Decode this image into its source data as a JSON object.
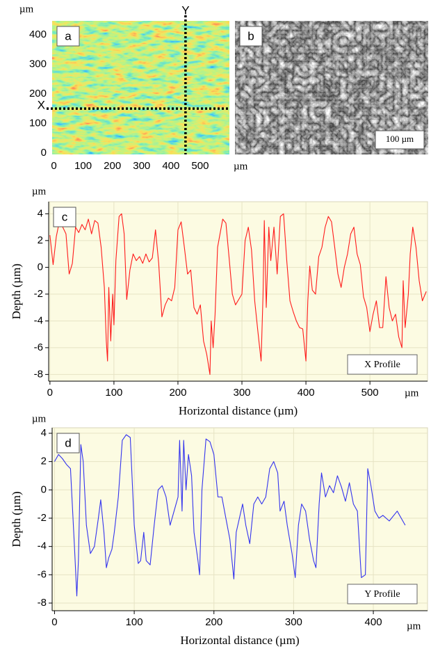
{
  "chart_data": [
    {
      "type": "height_map",
      "label": "a",
      "x_unit": "µm",
      "y_unit": "µm",
      "xlim": [
        -6,
        600
      ],
      "ylim": [
        -5,
        447
      ],
      "xticks": [
        0,
        100,
        200,
        300,
        400,
        500
      ],
      "yticks": [
        0,
        100,
        200,
        300,
        400
      ],
      "markers": [
        {
          "axis": "x",
          "value": 450,
          "label": "Y"
        },
        {
          "axis": "y",
          "value": 150,
          "label": "X"
        }
      ]
    },
    {
      "type": "image",
      "label": "b",
      "scale_bar": "100 µm"
    },
    {
      "type": "line",
      "label": "c",
      "x_unit": "µm",
      "y_unit": "µm",
      "x_label": "Horizontal distance (µm)",
      "y_label": "Depth (µm)",
      "xlim": [
        -2,
        590
      ],
      "ylim": [
        -8.5,
        4.9
      ],
      "xticks": [
        0,
        100,
        200,
        300,
        400,
        500
      ],
      "yticks": [
        -8,
        -6,
        -4,
        -2,
        0,
        2,
        4
      ],
      "grid": true,
      "x": [
        0,
        5,
        10,
        15,
        20,
        25,
        30,
        35,
        40,
        45,
        50,
        55,
        60,
        65,
        70,
        75,
        80,
        85,
        88,
        90,
        92,
        95,
        98,
        100,
        103,
        108,
        112,
        116,
        120,
        125,
        130,
        135,
        140,
        145,
        150,
        155,
        160,
        165,
        170,
        175,
        180,
        185,
        190,
        195,
        200,
        205,
        210,
        215,
        220,
        225,
        230,
        235,
        240,
        245,
        250,
        252,
        255,
        258,
        262,
        270,
        275,
        280,
        285,
        290,
        300,
        305,
        310,
        315,
        320,
        325,
        330,
        333,
        335,
        338,
        342,
        345,
        350,
        355,
        360,
        365,
        370,
        375,
        380,
        385,
        390,
        395,
        400,
        403,
        406,
        410,
        415,
        420,
        425,
        430,
        435,
        440,
        445,
        450,
        455,
        460,
        465,
        470,
        475,
        480,
        485,
        490,
        495,
        500,
        505,
        510,
        515,
        520,
        525,
        530,
        535,
        540,
        545,
        550,
        552,
        555,
        560,
        563,
        567,
        572,
        577,
        582,
        588
      ],
      "series": [
        {
          "name": "X Profile",
          "color": "#ff1a1a",
          "values": [
            2.4,
            0.2,
            2.3,
            3.5,
            3.0,
            2.5,
            -0.5,
            0.3,
            3.0,
            2.6,
            3.2,
            2.8,
            3.6,
            2.5,
            3.5,
            3.3,
            1.5,
            -1.5,
            -5.5,
            -7.0,
            -1.5,
            -5.5,
            -2,
            -4.3,
            0.5,
            3.8,
            4.0,
            2.5,
            -2.4,
            -0.2,
            1,
            0.5,
            0.8,
            0.3,
            1.0,
            0.4,
            0.7,
            2.8,
            0.3,
            -3.7,
            -2.8,
            -2.3,
            -2.5,
            -1.5,
            2.8,
            3.4,
            1.5,
            -0.5,
            -0.2,
            -3,
            -3.5,
            -2.8,
            -5.5,
            -6.5,
            -8,
            -4,
            -6,
            -3.5,
            1.5,
            3.6,
            3.3,
            0.7,
            -2.0,
            -2.8,
            -2.0,
            2.0,
            3.0,
            1.3,
            -2.5,
            -4.8,
            -7.0,
            -2,
            3.5,
            -3,
            3.0,
            0.5,
            3.0,
            -0.5,
            3.8,
            4.0,
            0.5,
            -2.5,
            -3.3,
            -4.0,
            -4.5,
            -4.6,
            -7.0,
            -2.5,
            0.1,
            -1.7,
            -2.0,
            0.8,
            1.5,
            3.0,
            3.8,
            3.4,
            1.5,
            -0.5,
            -1.5,
            0.0,
            1.0,
            2.5,
            3.0,
            1.0,
            0.2,
            -2.2,
            -3.0,
            -4.8,
            -3.5,
            -2.5,
            -4.5,
            -4.5,
            -0.7,
            -3.0,
            -4.0,
            -3.5,
            -5.2,
            -6.0,
            -1.0,
            -4.5,
            -2.0,
            1,
            3.0,
            1.5,
            -1.0,
            -2.5,
            -1.8
          ]
        }
      ]
    },
    {
      "type": "line",
      "label": "d",
      "x_unit": "µm",
      "y_unit": "µm",
      "x_label": "Horizontal distance (µm)",
      "y_label": "Depth (µm)",
      "xlim": [
        -3,
        468
      ],
      "ylim": [
        -8.54,
        4.39
      ],
      "xticks": [
        0,
        100,
        200,
        300,
        400
      ],
      "yticks": [
        -8,
        -6,
        -4,
        -2,
        0,
        2,
        4
      ],
      "grid": true,
      "x": [
        0,
        5,
        10,
        15,
        20,
        25,
        28,
        30,
        33,
        36,
        40,
        45,
        50,
        55,
        58,
        62,
        65,
        68,
        72,
        75,
        80,
        85,
        90,
        95,
        100,
        105,
        108,
        112,
        115,
        120,
        125,
        130,
        135,
        140,
        145,
        150,
        155,
        157,
        160,
        162,
        165,
        168,
        172,
        175,
        180,
        182,
        185,
        190,
        195,
        200,
        205,
        210,
        215,
        220,
        225,
        228,
        232,
        236,
        240,
        245,
        250,
        255,
        260,
        265,
        270,
        275,
        280,
        283,
        288,
        292,
        298,
        302,
        306,
        310,
        315,
        320,
        325,
        328,
        332,
        335,
        340,
        345,
        350,
        355,
        360,
        365,
        370,
        375,
        380,
        385,
        390,
        393,
        397,
        402,
        407,
        412,
        420,
        430,
        440
      ],
      "series": [
        {
          "name": "Y Profile",
          "color": "#3333ee",
          "values": [
            2.0,
            2.5,
            2.2,
            1.8,
            1.5,
            -4,
            -7.5,
            -5,
            3.2,
            2,
            -2.5,
            -4.5,
            -4,
            -2,
            -0.7,
            -3,
            -5.5,
            -4.8,
            -4.2,
            -3,
            -0.5,
            3.5,
            3.9,
            3.7,
            -2.5,
            -5.2,
            -5,
            -3,
            -5,
            -5.3,
            -2.5,
            0,
            0.3,
            -0.5,
            -2.5,
            -1.5,
            -0.5,
            3.5,
            -1.5,
            3.5,
            0,
            2.5,
            1.0,
            -3,
            -5,
            -6,
            0,
            3.6,
            3.4,
            2.5,
            -0.5,
            -0.5,
            -2.0,
            -3.5,
            -6.3,
            -3,
            -2,
            -1.0,
            -2.5,
            -3.8,
            -1,
            -0.5,
            -1,
            -0.5,
            1.5,
            2.0,
            1.2,
            -1.5,
            -0.8,
            -2.5,
            -4.5,
            -6.2,
            -2.5,
            -1.0,
            -1.5,
            -3.5,
            -5.0,
            -5.5,
            -1,
            1.2,
            -0.5,
            0.3,
            -0.2,
            1.0,
            0.2,
            -0.8,
            0.5,
            -1.0,
            -1.5,
            -6.2,
            -6.0,
            1.5,
            0.3,
            -1.5,
            -2.0,
            -1.8,
            -2.2,
            -1.5,
            -2.5
          ]
        }
      ]
    }
  ]
}
